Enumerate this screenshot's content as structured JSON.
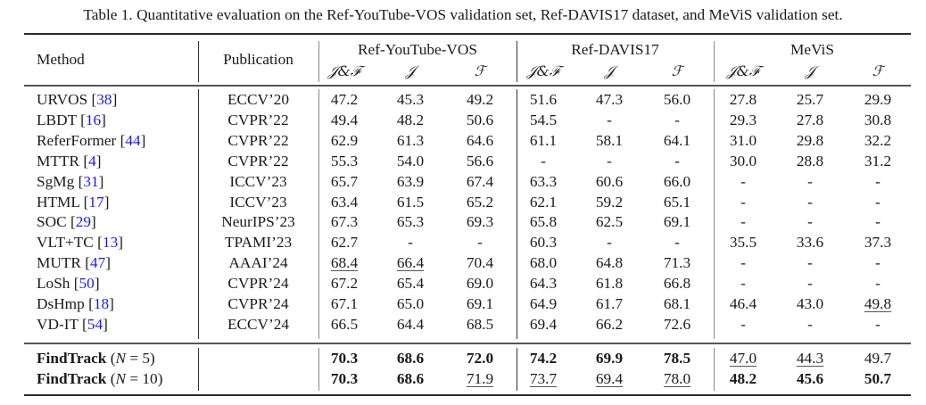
{
  "caption": "Table 1. Quantitative evaluation on the Ref-YouTube-VOS validation set, Ref-DAVIS17 dataset, and MeViS validation set.",
  "header": {
    "method": "Method",
    "publication": "Publication",
    "groups": [
      "Ref-YouTube-VOS",
      "Ref-DAVIS17",
      "MeViS"
    ],
    "metrics": [
      "𝒥&ℱ",
      "𝒥",
      "ℱ"
    ]
  },
  "rows": [
    {
      "name": "URVOS",
      "ref": "38",
      "pub": "ECCV’20",
      "values": [
        "47.2",
        "45.3",
        "49.2",
        "51.6",
        "47.3",
        "56.0",
        "27.8",
        "25.7",
        "29.9"
      ],
      "bold": [],
      "underline": []
    },
    {
      "name": "LBDT",
      "ref": "16",
      "pub": "CVPR’22",
      "values": [
        "49.4",
        "48.2",
        "50.6",
        "54.5",
        "-",
        "-",
        "29.3",
        "27.8",
        "30.8"
      ],
      "bold": [],
      "underline": []
    },
    {
      "name": "ReferFormer",
      "ref": "44",
      "pub": "CVPR’22",
      "values": [
        "62.9",
        "61.3",
        "64.6",
        "61.1",
        "58.1",
        "64.1",
        "31.0",
        "29.8",
        "32.2"
      ],
      "bold": [],
      "underline": []
    },
    {
      "name": "MTTR",
      "ref": "4",
      "pub": "CVPR’22",
      "values": [
        "55.3",
        "54.0",
        "56.6",
        "-",
        "-",
        "-",
        "30.0",
        "28.8",
        "31.2"
      ],
      "bold": [],
      "underline": []
    },
    {
      "name": "SgMg",
      "ref": "31",
      "pub": "ICCV’23",
      "values": [
        "65.7",
        "63.9",
        "67.4",
        "63.3",
        "60.6",
        "66.0",
        "-",
        "-",
        "-"
      ],
      "bold": [],
      "underline": []
    },
    {
      "name": "HTML",
      "ref": "17",
      "pub": "ICCV’23",
      "values": [
        "63.4",
        "61.5",
        "65.2",
        "62.1",
        "59.2",
        "65.1",
        "-",
        "-",
        "-"
      ],
      "bold": [],
      "underline": []
    },
    {
      "name": "SOC",
      "ref": "29",
      "pub": "NeurIPS’23",
      "values": [
        "67.3",
        "65.3",
        "69.3",
        "65.8",
        "62.5",
        "69.1",
        "-",
        "-",
        "-"
      ],
      "bold": [],
      "underline": []
    },
    {
      "name": "VLT+TC",
      "ref": "13",
      "pub": "TPAMI’23",
      "values": [
        "62.7",
        "-",
        "-",
        "60.3",
        "-",
        "-",
        "35.5",
        "33.6",
        "37.3"
      ],
      "bold": [],
      "underline": []
    },
    {
      "name": "MUTR",
      "ref": "47",
      "pub": "AAAI’24",
      "values": [
        "68.4",
        "66.4",
        "70.4",
        "68.0",
        "64.8",
        "71.3",
        "-",
        "-",
        "-"
      ],
      "bold": [],
      "underline": [
        0,
        1
      ]
    },
    {
      "name": "LoSh",
      "ref": "50",
      "pub": "CVPR’24",
      "values": [
        "67.2",
        "65.4",
        "69.0",
        "64.3",
        "61.8",
        "66.8",
        "-",
        "-",
        "-"
      ],
      "bold": [],
      "underline": []
    },
    {
      "name": "DsHmp",
      "ref": "18",
      "pub": "CVPR’24",
      "values": [
        "67.1",
        "65.0",
        "69.1",
        "64.9",
        "61.7",
        "68.1",
        "46.4",
        "43.0",
        "49.8"
      ],
      "bold": [],
      "underline": [
        8
      ]
    },
    {
      "name": "VD-IT",
      "ref": "54",
      "pub": "ECCV’24",
      "values": [
        "66.5",
        "64.4",
        "68.5",
        "69.4",
        "66.2",
        "72.6",
        "-",
        "-",
        "-"
      ],
      "bold": [],
      "underline": []
    }
  ],
  "ours": [
    {
      "name": "FindTrack",
      "n_label": "N",
      "n_value": "= 5)",
      "values": [
        "70.3",
        "68.6",
        "72.0",
        "74.2",
        "69.9",
        "78.5",
        "47.0",
        "44.3",
        "49.7"
      ],
      "bold": [
        0,
        1,
        2,
        3,
        4,
        5
      ],
      "underline": [
        6,
        7
      ]
    },
    {
      "name": "FindTrack",
      "n_label": "N",
      "n_value": "= 10)",
      "values": [
        "70.3",
        "68.6",
        "71.9",
        "73.7",
        "69.4",
        "78.0",
        "48.2",
        "45.6",
        "50.7"
      ],
      "bold": [
        0,
        1,
        6,
        7,
        8
      ],
      "underline": [
        2,
        3,
        4,
        5
      ]
    }
  ],
  "colors": {
    "citation": "#1a1aee",
    "text": "#1a1a1a",
    "rule": "#2a2a2a"
  }
}
